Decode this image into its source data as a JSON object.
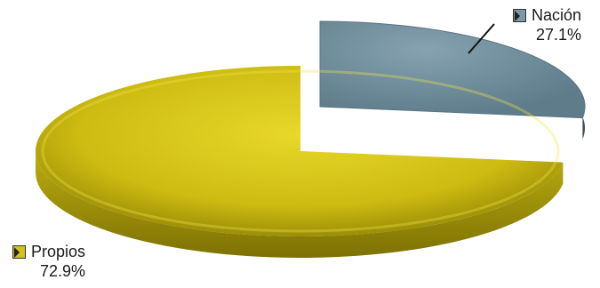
{
  "chart_data": {
    "type": "pie",
    "style": "3d-exploded",
    "slices": [
      {
        "name": "Nación",
        "value": 27.1,
        "label": "27.1%",
        "color": "#7a98a6"
      },
      {
        "name": "Propios",
        "value": 72.9,
        "label": "72.9%",
        "color": "#d3c21c"
      }
    ],
    "legend": "inline-labels"
  }
}
